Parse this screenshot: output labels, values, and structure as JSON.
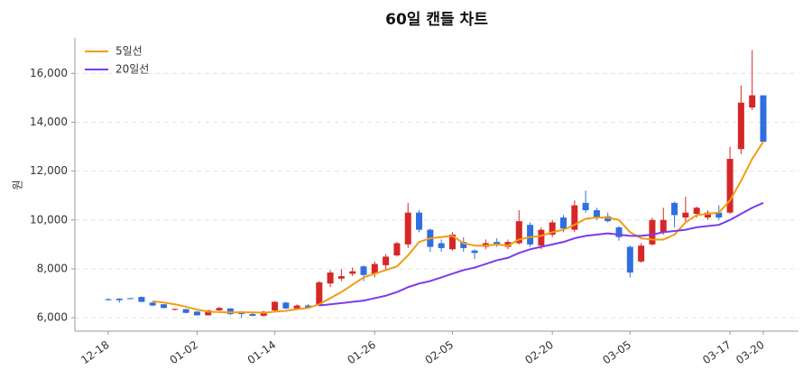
{
  "chart_data": {
    "type": "candlestick",
    "title": "60일 캔들 차트",
    "y_label": "원",
    "categories": [
      "12-18",
      null,
      null,
      null,
      null,
      null,
      null,
      null,
      "01-02",
      null,
      null,
      null,
      null,
      null,
      null,
      "01-14",
      null,
      null,
      null,
      null,
      null,
      null,
      null,
      null,
      "01-26",
      null,
      null,
      null,
      null,
      null,
      null,
      "02-05",
      null,
      null,
      null,
      null,
      null,
      null,
      null,
      null,
      "02-20",
      null,
      null,
      null,
      null,
      null,
      null,
      "03-05",
      null,
      null,
      null,
      null,
      null,
      null,
      null,
      null,
      "03-17",
      null,
      null,
      "03-20"
    ],
    "open": [
      6760,
      6780,
      6800,
      6850,
      6620,
      6550,
      6330,
      6350,
      6250,
      6100,
      6300,
      6380,
      6250,
      6150,
      6080,
      6300,
      6620,
      6380,
      6500,
      6500,
      7400,
      7600,
      7800,
      8100,
      7800,
      8150,
      8550,
      9000,
      10300,
      9600,
      9050,
      8800,
      9100,
      8750,
      8900,
      9100,
      8900,
      9050,
      9800,
      8950,
      9400,
      10100,
      9600,
      10700,
      10400,
      10150,
      9700,
      8900,
      8300,
      9000,
      9500,
      10700,
      10100,
      10250,
      10100,
      10300,
      10300,
      12900,
      14600,
      15100
    ],
    "high": [
      6790,
      6800,
      6820,
      6870,
      6650,
      6560,
      6380,
      6370,
      6270,
      6330,
      6450,
      6400,
      6270,
      6200,
      6280,
      6680,
      6650,
      6550,
      6550,
      7500,
      7950,
      8000,
      8050,
      8150,
      8300,
      8600,
      9100,
      10700,
      10400,
      9650,
      9200,
      9500,
      9300,
      8800,
      9200,
      9250,
      9200,
      10400,
      9900,
      9700,
      10000,
      10200,
      10800,
      11200,
      10500,
      10300,
      9750,
      8950,
      9050,
      10100,
      10500,
      10750,
      10950,
      10550,
      10400,
      10600,
      13000,
      15500,
      16950,
      15100
    ],
    "low": [
      6700,
      6620,
      6770,
      6640,
      6480,
      6380,
      6300,
      6180,
      6080,
      6080,
      6280,
      6100,
      6000,
      6050,
      6050,
      6280,
      6350,
      6350,
      6380,
      6480,
      7250,
      7500,
      7700,
      7500,
      7650,
      7950,
      8500,
      8850,
      9500,
      8700,
      8700,
      8750,
      8700,
      8400,
      8800,
      8900,
      8800,
      9000,
      8900,
      8800,
      9300,
      9500,
      9500,
      10300,
      10000,
      9900,
      9150,
      7650,
      8250,
      8950,
      9400,
      9700,
      9950,
      10100,
      10000,
      10000,
      10250,
      12700,
      14500,
      13200
    ],
    "close": [
      6720,
      6720,
      6780,
      6650,
      6500,
      6400,
      6360,
      6200,
      6100,
      6300,
      6400,
      6150,
      6150,
      6080,
      6250,
      6650,
      6380,
      6500,
      6420,
      7450,
      7850,
      7700,
      7900,
      7750,
      8200,
      8500,
      9050,
      10300,
      9600,
      8900,
      8850,
      9400,
      8850,
      8650,
      9050,
      9000,
      9100,
      9950,
      9000,
      9600,
      9900,
      9650,
      10600,
      10400,
      10100,
      9950,
      9300,
      7850,
      8950,
      10000,
      10000,
      10200,
      10300,
      10500,
      10300,
      10100,
      12500,
      14800,
      15100,
      13200
    ],
    "up_color": "#d62728",
    "down_color": "#2f6fdf",
    "series": [
      {
        "name": "5일선",
        "color": "#f39c12",
        "values": [
          null,
          null,
          null,
          null,
          6680,
          6620,
          6550,
          6450,
          6330,
          6250,
          6230,
          6220,
          6220,
          6220,
          6200,
          6250,
          6280,
          6350,
          6400,
          6550,
          6800,
          7050,
          7350,
          7650,
          7800,
          7950,
          8100,
          8550,
          9100,
          9250,
          9300,
          9350,
          9050,
          8950,
          8950,
          9000,
          8950,
          9200,
          9300,
          9350,
          9500,
          9600,
          9800,
          10050,
          10100,
          10100,
          10000,
          9500,
          9250,
          9200,
          9200,
          9400,
          9900,
          10200,
          10250,
          10300,
          10800,
          11600,
          12500,
          13200
        ]
      },
      {
        "name": "20일선",
        "color": "#7c3aed",
        "values": [
          null,
          null,
          null,
          null,
          null,
          null,
          null,
          null,
          null,
          null,
          null,
          null,
          null,
          null,
          null,
          null,
          null,
          null,
          null,
          6500,
          6550,
          6600,
          6650,
          6700,
          6800,
          6900,
          7050,
          7250,
          7400,
          7500,
          7650,
          7800,
          7950,
          8050,
          8200,
          8350,
          8450,
          8650,
          8800,
          8900,
          9000,
          9100,
          9250,
          9350,
          9400,
          9450,
          9400,
          9350,
          9350,
          9400,
          9500,
          9550,
          9600,
          9700,
          9750,
          9800,
          10000,
          10250,
          10500,
          10700
        ]
      }
    ],
    "ylim": [
      5450,
      17450
    ],
    "yticks": [
      {
        "value": 6000,
        "label": "6,000"
      },
      {
        "value": 8000,
        "label": "8,000"
      },
      {
        "value": 10000,
        "label": "10,000"
      },
      {
        "value": 12000,
        "label": "12,000"
      },
      {
        "value": 14000,
        "label": "14,000"
      },
      {
        "value": 16000,
        "label": "16,000"
      }
    ],
    "grid": true,
    "legend": "upper left"
  }
}
